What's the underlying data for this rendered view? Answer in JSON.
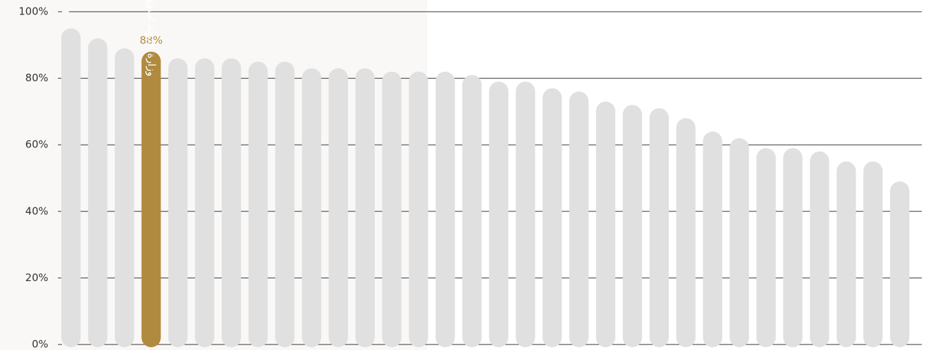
{
  "chart_data": {
    "type": "bar",
    "categories": [
      null,
      null,
      null,
      "وزارة الدولة لشؤون المجلس الوطني الاتحادي",
      null,
      null,
      null,
      null,
      null,
      null,
      null,
      null,
      null,
      null,
      null,
      null,
      null,
      null,
      null,
      null,
      null,
      null,
      null,
      null,
      null,
      null,
      null,
      null,
      null,
      null,
      null,
      null
    ],
    "values": [
      95,
      92,
      89,
      88,
      86,
      86,
      86,
      85,
      85,
      83,
      83,
      83,
      82,
      82,
      82,
      81,
      79,
      79,
      77,
      76,
      73,
      72,
      71,
      68,
      64,
      62,
      59,
      59,
      58,
      55,
      55,
      49
    ],
    "value_labels": [
      null,
      null,
      null,
      "88%",
      null,
      null,
      null,
      null,
      null,
      null,
      null,
      null,
      null,
      null,
      null,
      null,
      null,
      null,
      null,
      null,
      null,
      null,
      null,
      null,
      null,
      null,
      null,
      null,
      null,
      null,
      null,
      null
    ],
    "colors": [
      "#e0e0e1",
      "#e0e0e1",
      "#e0e0e1",
      "#b08a3e",
      "#e0e0e1",
      "#e0e0e1",
      "#e0e0e1",
      "#e0e0e1",
      "#e0e0e1",
      "#e0e0e1",
      "#e0e0e1",
      "#e0e0e1",
      "#e0e0e1",
      "#e0e0e1",
      "#e0e0e1",
      "#e0e0e1",
      "#e0e0e1",
      "#e0e0e1",
      "#e0e0e1",
      "#e0e0e1",
      "#e0e0e1",
      "#e0e0e1",
      "#e0e0e1",
      "#e0e0e1",
      "#e0e0e1",
      "#e0e0e1",
      "#e0e0e1",
      "#e0e0e1",
      "#e0e0e1",
      "#e0e0e1",
      "#e0e0e1",
      "#e0e0e1"
    ],
    "ylim": [
      0,
      100
    ],
    "yticks": [
      {
        "value": 0,
        "label": "0%"
      },
      {
        "value": 20,
        "label": "20%"
      },
      {
        "value": 40,
        "label": "40%"
      },
      {
        "value": 60,
        "label": "60%"
      },
      {
        "value": 80,
        "label": "80%"
      },
      {
        "value": 100,
        "label": "100%"
      }
    ],
    "grid": true
  }
}
